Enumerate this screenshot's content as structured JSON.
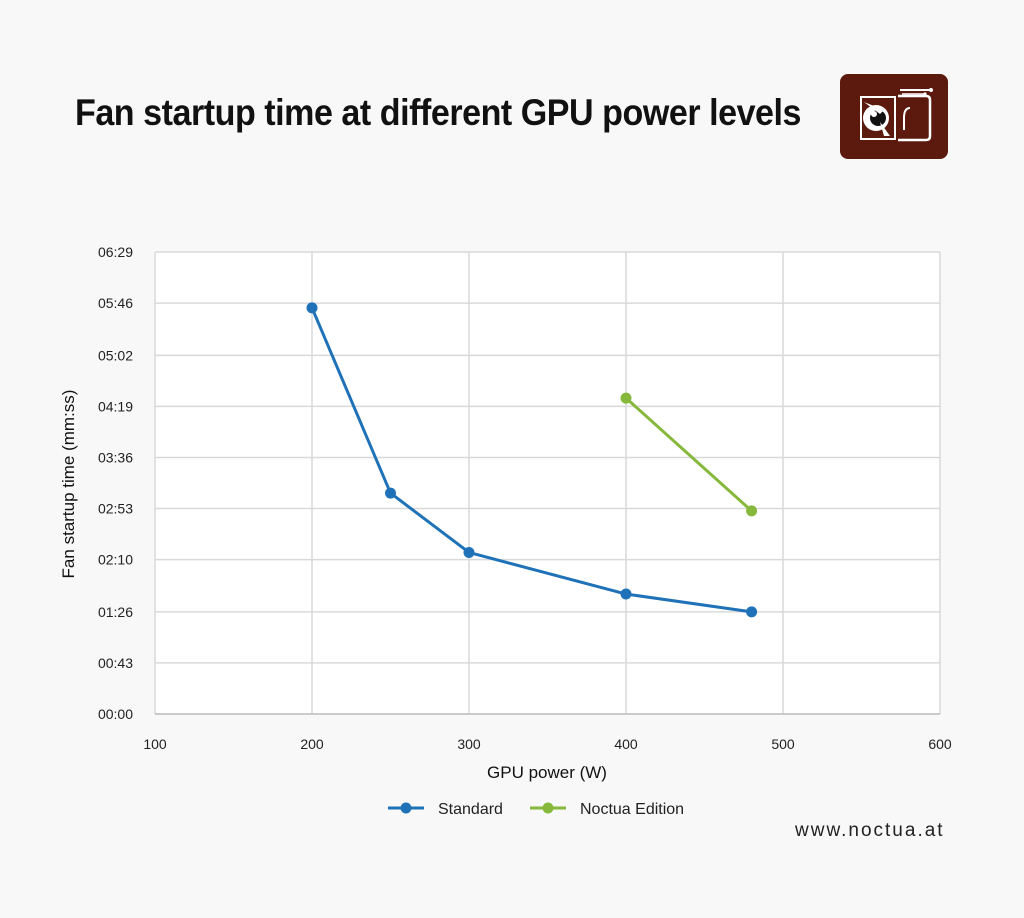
{
  "title": "Fan startup time at different GPU power levels",
  "website": "www.noctua.at",
  "logo": {
    "icon": "owl-logo-icon",
    "background": "#5c1a0e"
  },
  "chart_data": {
    "type": "line",
    "title": "Fan startup time at different GPU power levels",
    "xlabel": "GPU power (W)",
    "ylabel": "Fan startup time (mm:ss)",
    "xlim": [
      100,
      600
    ],
    "x_ticks": [
      100,
      200,
      300,
      400,
      500,
      600
    ],
    "x_tick_labels": [
      "100",
      "200",
      "300",
      "400",
      "500",
      "600"
    ],
    "ylim_seconds": [
      0,
      389
    ],
    "y_ticks_seconds": [
      0,
      43,
      86,
      130,
      173,
      216,
      259,
      302,
      346,
      389
    ],
    "y_tick_labels": [
      "00:00",
      "00:43",
      "01:26",
      "02:10",
      "02:53",
      "03:36",
      "04:19",
      "05:02",
      "05:46",
      "06:29"
    ],
    "grid": true,
    "legend_position": "bottom",
    "series": [
      {
        "name": "Standard",
        "color": "#1f72b8",
        "points": [
          {
            "x": 200,
            "y_seconds": 342
          },
          {
            "x": 250,
            "y_seconds": 186
          },
          {
            "x": 300,
            "y_seconds": 136
          },
          {
            "x": 400,
            "y_seconds": 101
          },
          {
            "x": 480,
            "y_seconds": 86
          }
        ]
      },
      {
        "name": "Noctua Edition",
        "color": "#86b83b",
        "points": [
          {
            "x": 400,
            "y_seconds": 266
          },
          {
            "x": 480,
            "y_seconds": 171
          }
        ]
      }
    ]
  }
}
